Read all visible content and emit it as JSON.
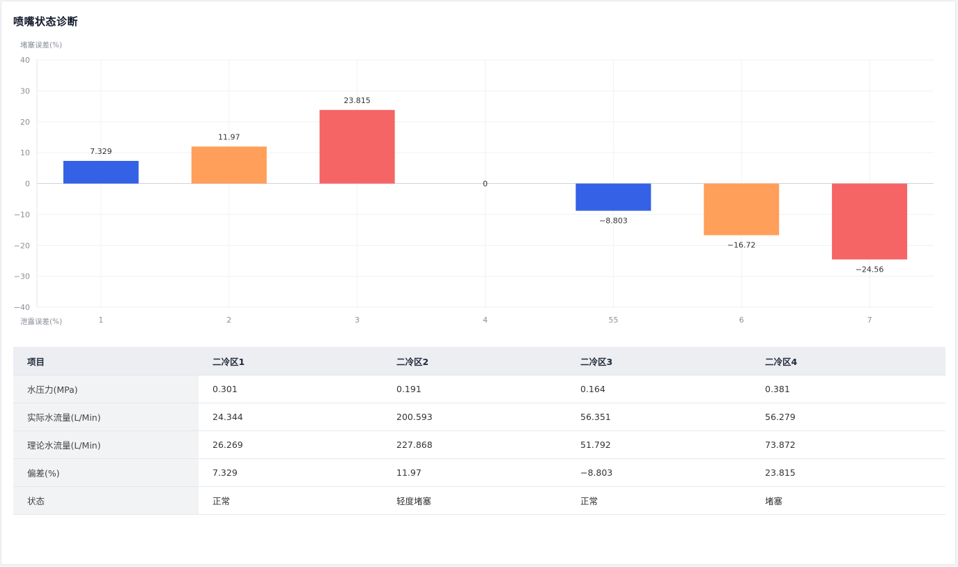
{
  "panel": {
    "title": "喷嘴状态诊断"
  },
  "chart_data": {
    "type": "bar",
    "ylabel": "堵塞误差(%)",
    "xlabel": "泄露误差(%)",
    "ylim": [
      -40,
      40
    ],
    "yticks": [
      40,
      30,
      20,
      10,
      0,
      -10,
      -20,
      -30,
      -40
    ],
    "ytick_labels": [
      "40",
      "30",
      "20",
      "10",
      "0",
      "−10",
      "−20",
      "−30",
      "−40"
    ],
    "categories": [
      "1",
      "2",
      "3",
      "4",
      "55",
      "6",
      "7"
    ],
    "values": [
      7.329,
      11.97,
      23.815,
      0,
      -8.803,
      -16.72,
      -24.56
    ],
    "value_labels": [
      "7.329",
      "11.97",
      "23.815",
      "0",
      "−8.803",
      "−16.72",
      "−24.56"
    ],
    "colors": [
      "#3461e6",
      "#ff9f5a",
      "#f56565",
      "#3461e6",
      "#3461e6",
      "#ff9f5a",
      "#f56565"
    ],
    "grid": true
  },
  "table": {
    "headers": [
      "项目",
      "二冷区1",
      "二冷区2",
      "二冷区3",
      "二冷区4"
    ],
    "rows": [
      [
        "水压力(MPa)",
        "0.301",
        "0.191",
        "0.164",
        "0.381"
      ],
      [
        "实际水流量(L/Min)",
        "24.344",
        "200.593",
        "56.351",
        "56.279"
      ],
      [
        "理论水流量(L/Min)",
        "26.269",
        "227.868",
        "51.792",
        "73.872"
      ],
      [
        "偏差(%)",
        "7.329",
        "11.97",
        "−8.803",
        "23.815"
      ],
      [
        "状态",
        "正常",
        "轻度堵塞",
        "正常",
        "堵塞"
      ]
    ]
  }
}
